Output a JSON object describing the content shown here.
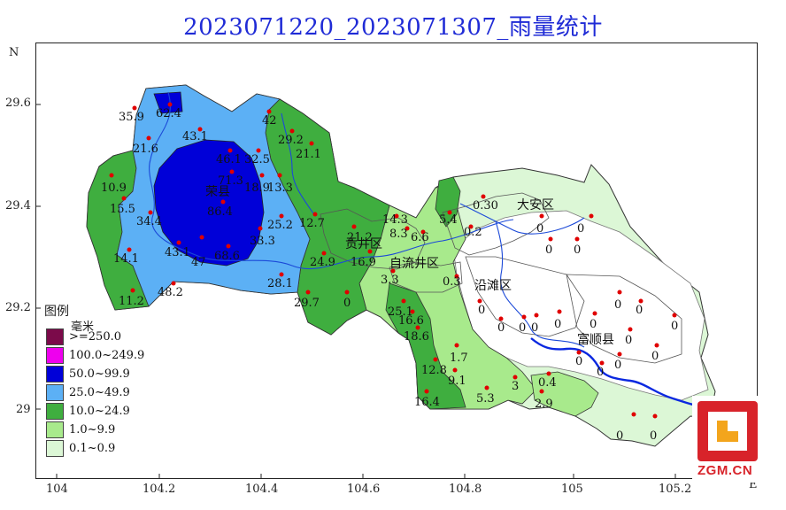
{
  "title": "2023071220_2023071307_雨量统计",
  "north_label": "N",
  "east_label": "E",
  "lat_ticks": [
    "29.6",
    "29.4",
    "29.2",
    "29"
  ],
  "lon_ticks": [
    "104",
    "104.2",
    "104.4",
    "104.6",
    "104.8",
    "105",
    "105.2"
  ],
  "legend": {
    "title": "图例",
    "unit": "毫米",
    "items": [
      {
        "label": ">=250.0",
        "color": "#7b0a4a"
      },
      {
        "label": "100.0~249.9",
        "color": "#ee00ee"
      },
      {
        "label": "50.0~99.9",
        "color": "#0000d8"
      },
      {
        "label": "25.0~49.9",
        "color": "#5cb0f5"
      },
      {
        "label": "10.0~24.9",
        "color": "#3fae3f"
      },
      {
        "label": "1.0~9.9",
        "color": "#a8ea8c"
      },
      {
        "label": "0.1~0.9",
        "color": "#dcf7d6"
      }
    ]
  },
  "district_labels": [
    {
      "text": "荣县"
    },
    {
      "text": "贡井区"
    },
    {
      "text": "自流井区"
    },
    {
      "text": "大安区"
    },
    {
      "text": "沿滩区"
    },
    {
      "text": "富顺县"
    }
  ],
  "stations": [
    {
      "v": "35.9"
    },
    {
      "v": "62.4"
    },
    {
      "v": "21.6"
    },
    {
      "v": "43.1"
    },
    {
      "v": "10.9"
    },
    {
      "v": "15.5"
    },
    {
      "v": "34.4"
    },
    {
      "v": "14.1"
    },
    {
      "v": "11.2"
    },
    {
      "v": "48.2"
    },
    {
      "v": "43.1"
    },
    {
      "v": "47"
    },
    {
      "v": "46.1"
    },
    {
      "v": "71.3"
    },
    {
      "v": "86.4"
    },
    {
      "v": "68.6"
    },
    {
      "v": "33.3"
    },
    {
      "v": "42"
    },
    {
      "v": "32.5"
    },
    {
      "v": "29.2"
    },
    {
      "v": "21.1"
    },
    {
      "v": "18.9"
    },
    {
      "v": "13.3"
    },
    {
      "v": "12.7"
    },
    {
      "v": "25.2"
    },
    {
      "v": "24.9"
    },
    {
      "v": "21.2"
    },
    {
      "v": "16.9"
    },
    {
      "v": "28.1"
    },
    {
      "v": "29.7"
    },
    {
      "v": "0"
    },
    {
      "v": "14.3"
    },
    {
      "v": "8.3"
    },
    {
      "v": "3.3"
    },
    {
      "v": "25.1"
    },
    {
      "v": "16.6"
    },
    {
      "v": "18.6"
    },
    {
      "v": "12.8"
    },
    {
      "v": "9.1"
    },
    {
      "v": "16.4"
    },
    {
      "v": "1.7"
    },
    {
      "v": "5.3"
    },
    {
      "v": "3"
    },
    {
      "v": "0.4"
    },
    {
      "v": "2.9"
    },
    {
      "v": "0.3"
    },
    {
      "v": "5.4"
    },
    {
      "v": "0.30"
    },
    {
      "v": "6.6"
    },
    {
      "v": "0.2"
    },
    {
      "v": "0"
    },
    {
      "v": "0"
    },
    {
      "v": "0"
    },
    {
      "v": "0"
    },
    {
      "v": "0"
    },
    {
      "v": "0"
    },
    {
      "v": "0"
    },
    {
      "v": "0"
    },
    {
      "v": "0"
    },
    {
      "v": "0"
    },
    {
      "v": "0"
    },
    {
      "v": "0"
    },
    {
      "v": "0"
    },
    {
      "v": "0"
    },
    {
      "v": "0"
    },
    {
      "v": "0"
    },
    {
      "v": "0"
    },
    {
      "v": "0"
    },
    {
      "v": "0"
    },
    {
      "v": "0"
    }
  ],
  "watermark": {
    "text": "ZGM.CN",
    "brand_color": "#d8232a"
  }
}
